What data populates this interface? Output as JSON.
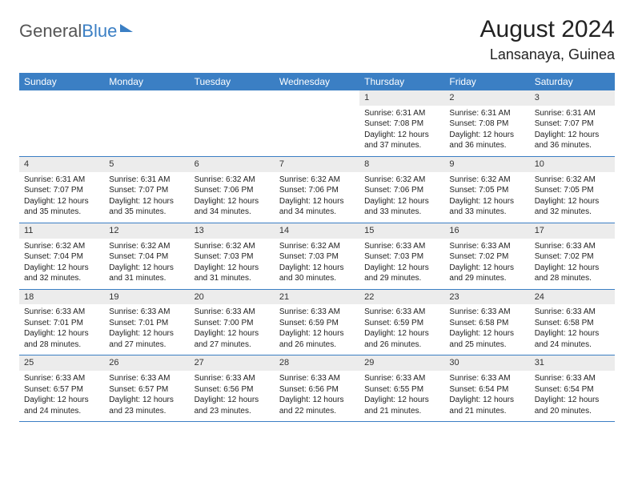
{
  "brand": {
    "part1": "General",
    "part2": "Blue"
  },
  "title": "August 2024",
  "location": "Lansanaya, Guinea",
  "colors": {
    "header_bg": "#3b7fc4",
    "header_fg": "#ffffff",
    "daynum_bg": "#ececec",
    "rule": "#3b7fc4",
    "text": "#222222"
  },
  "weekdays": [
    "Sunday",
    "Monday",
    "Tuesday",
    "Wednesday",
    "Thursday",
    "Friday",
    "Saturday"
  ],
  "weeks": [
    [
      {
        "n": "",
        "sunrise": "",
        "sunset": "",
        "daylight": ""
      },
      {
        "n": "",
        "sunrise": "",
        "sunset": "",
        "daylight": ""
      },
      {
        "n": "",
        "sunrise": "",
        "sunset": "",
        "daylight": ""
      },
      {
        "n": "",
        "sunrise": "",
        "sunset": "",
        "daylight": ""
      },
      {
        "n": "1",
        "sunrise": "Sunrise: 6:31 AM",
        "sunset": "Sunset: 7:08 PM",
        "daylight": "Daylight: 12 hours and 37 minutes."
      },
      {
        "n": "2",
        "sunrise": "Sunrise: 6:31 AM",
        "sunset": "Sunset: 7:08 PM",
        "daylight": "Daylight: 12 hours and 36 minutes."
      },
      {
        "n": "3",
        "sunrise": "Sunrise: 6:31 AM",
        "sunset": "Sunset: 7:07 PM",
        "daylight": "Daylight: 12 hours and 36 minutes."
      }
    ],
    [
      {
        "n": "4",
        "sunrise": "Sunrise: 6:31 AM",
        "sunset": "Sunset: 7:07 PM",
        "daylight": "Daylight: 12 hours and 35 minutes."
      },
      {
        "n": "5",
        "sunrise": "Sunrise: 6:31 AM",
        "sunset": "Sunset: 7:07 PM",
        "daylight": "Daylight: 12 hours and 35 minutes."
      },
      {
        "n": "6",
        "sunrise": "Sunrise: 6:32 AM",
        "sunset": "Sunset: 7:06 PM",
        "daylight": "Daylight: 12 hours and 34 minutes."
      },
      {
        "n": "7",
        "sunrise": "Sunrise: 6:32 AM",
        "sunset": "Sunset: 7:06 PM",
        "daylight": "Daylight: 12 hours and 34 minutes."
      },
      {
        "n": "8",
        "sunrise": "Sunrise: 6:32 AM",
        "sunset": "Sunset: 7:06 PM",
        "daylight": "Daylight: 12 hours and 33 minutes."
      },
      {
        "n": "9",
        "sunrise": "Sunrise: 6:32 AM",
        "sunset": "Sunset: 7:05 PM",
        "daylight": "Daylight: 12 hours and 33 minutes."
      },
      {
        "n": "10",
        "sunrise": "Sunrise: 6:32 AM",
        "sunset": "Sunset: 7:05 PM",
        "daylight": "Daylight: 12 hours and 32 minutes."
      }
    ],
    [
      {
        "n": "11",
        "sunrise": "Sunrise: 6:32 AM",
        "sunset": "Sunset: 7:04 PM",
        "daylight": "Daylight: 12 hours and 32 minutes."
      },
      {
        "n": "12",
        "sunrise": "Sunrise: 6:32 AM",
        "sunset": "Sunset: 7:04 PM",
        "daylight": "Daylight: 12 hours and 31 minutes."
      },
      {
        "n": "13",
        "sunrise": "Sunrise: 6:32 AM",
        "sunset": "Sunset: 7:03 PM",
        "daylight": "Daylight: 12 hours and 31 minutes."
      },
      {
        "n": "14",
        "sunrise": "Sunrise: 6:32 AM",
        "sunset": "Sunset: 7:03 PM",
        "daylight": "Daylight: 12 hours and 30 minutes."
      },
      {
        "n": "15",
        "sunrise": "Sunrise: 6:33 AM",
        "sunset": "Sunset: 7:03 PM",
        "daylight": "Daylight: 12 hours and 29 minutes."
      },
      {
        "n": "16",
        "sunrise": "Sunrise: 6:33 AM",
        "sunset": "Sunset: 7:02 PM",
        "daylight": "Daylight: 12 hours and 29 minutes."
      },
      {
        "n": "17",
        "sunrise": "Sunrise: 6:33 AM",
        "sunset": "Sunset: 7:02 PM",
        "daylight": "Daylight: 12 hours and 28 minutes."
      }
    ],
    [
      {
        "n": "18",
        "sunrise": "Sunrise: 6:33 AM",
        "sunset": "Sunset: 7:01 PM",
        "daylight": "Daylight: 12 hours and 28 minutes."
      },
      {
        "n": "19",
        "sunrise": "Sunrise: 6:33 AM",
        "sunset": "Sunset: 7:01 PM",
        "daylight": "Daylight: 12 hours and 27 minutes."
      },
      {
        "n": "20",
        "sunrise": "Sunrise: 6:33 AM",
        "sunset": "Sunset: 7:00 PM",
        "daylight": "Daylight: 12 hours and 27 minutes."
      },
      {
        "n": "21",
        "sunrise": "Sunrise: 6:33 AM",
        "sunset": "Sunset: 6:59 PM",
        "daylight": "Daylight: 12 hours and 26 minutes."
      },
      {
        "n": "22",
        "sunrise": "Sunrise: 6:33 AM",
        "sunset": "Sunset: 6:59 PM",
        "daylight": "Daylight: 12 hours and 26 minutes."
      },
      {
        "n": "23",
        "sunrise": "Sunrise: 6:33 AM",
        "sunset": "Sunset: 6:58 PM",
        "daylight": "Daylight: 12 hours and 25 minutes."
      },
      {
        "n": "24",
        "sunrise": "Sunrise: 6:33 AM",
        "sunset": "Sunset: 6:58 PM",
        "daylight": "Daylight: 12 hours and 24 minutes."
      }
    ],
    [
      {
        "n": "25",
        "sunrise": "Sunrise: 6:33 AM",
        "sunset": "Sunset: 6:57 PM",
        "daylight": "Daylight: 12 hours and 24 minutes."
      },
      {
        "n": "26",
        "sunrise": "Sunrise: 6:33 AM",
        "sunset": "Sunset: 6:57 PM",
        "daylight": "Daylight: 12 hours and 23 minutes."
      },
      {
        "n": "27",
        "sunrise": "Sunrise: 6:33 AM",
        "sunset": "Sunset: 6:56 PM",
        "daylight": "Daylight: 12 hours and 23 minutes."
      },
      {
        "n": "28",
        "sunrise": "Sunrise: 6:33 AM",
        "sunset": "Sunset: 6:56 PM",
        "daylight": "Daylight: 12 hours and 22 minutes."
      },
      {
        "n": "29",
        "sunrise": "Sunrise: 6:33 AM",
        "sunset": "Sunset: 6:55 PM",
        "daylight": "Daylight: 12 hours and 21 minutes."
      },
      {
        "n": "30",
        "sunrise": "Sunrise: 6:33 AM",
        "sunset": "Sunset: 6:54 PM",
        "daylight": "Daylight: 12 hours and 21 minutes."
      },
      {
        "n": "31",
        "sunrise": "Sunrise: 6:33 AM",
        "sunset": "Sunset: 6:54 PM",
        "daylight": "Daylight: 12 hours and 20 minutes."
      }
    ]
  ]
}
